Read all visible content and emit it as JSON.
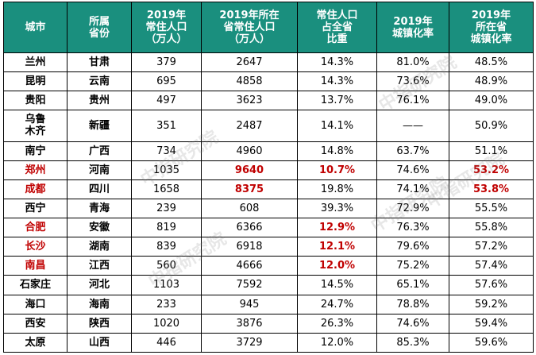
{
  "headers": [
    "城市",
    "所属\n省份",
    "2019年\n常住人口\n（万人）",
    "2019年所在\n省常住人口\n（万人）",
    "常住人口\n占全省\n比重",
    "2019年\n城镇化率",
    "2019年\n所在省\n城镇化率"
  ],
  "rows": [
    {
      "city": "兰州",
      "province": "甘肃",
      "pop": "379",
      "prov_pop": "2647",
      "share": "14.3%",
      "urban": "81.0%",
      "prov_urban": "48.5%"
    },
    {
      "city": "昆明",
      "province": "云南",
      "pop": "695",
      "prov_pop": "4858",
      "share": "14.3%",
      "urban": "73.6%",
      "prov_urban": "48.9%"
    },
    {
      "city": "贵阳",
      "province": "贵州",
      "pop": "497",
      "prov_pop": "3623",
      "share": "13.7%",
      "urban": "76.1%",
      "prov_urban": "49.0%"
    },
    {
      "city": "乌鲁\n木齐",
      "province": "新疆",
      "pop": "351",
      "prov_pop": "2487",
      "share": "14.1%",
      "urban": "——",
      "prov_urban": "50.9%"
    },
    {
      "city": "南宁",
      "province": "广西",
      "pop": "734",
      "prov_pop": "4960",
      "share": "14.8%",
      "urban": "63.7%",
      "prov_urban": "51.1%"
    },
    {
      "city": "郑州",
      "province": "河南",
      "pop": "1035",
      "prov_pop": "9640",
      "share": "10.7%",
      "urban": "74.6%",
      "prov_urban": "53.2%"
    },
    {
      "city": "成都",
      "province": "四川",
      "pop": "1658",
      "prov_pop": "8375",
      "share": "19.8%",
      "urban": "74.1%",
      "prov_urban": "53.8%"
    },
    {
      "city": "西宁",
      "province": "青海",
      "pop": "239",
      "prov_pop": "608",
      "share": "39.3%",
      "urban": "72.9%",
      "prov_urban": "55.5%"
    },
    {
      "city": "合肥",
      "province": "安徽",
      "pop": "819",
      "prov_pop": "6366",
      "share": "12.9%",
      "urban": "76.3%",
      "prov_urban": "55.8%"
    },
    {
      "city": "长沙",
      "province": "湖南",
      "pop": "839",
      "prov_pop": "6918",
      "share": "12.1%",
      "urban": "79.6%",
      "prov_urban": "57.2%"
    },
    {
      "city": "南昌",
      "province": "江西",
      "pop": "560",
      "prov_pop": "4666",
      "share": "12.0%",
      "urban": "75.2%",
      "prov_urban": "57.4%"
    },
    {
      "city": "石家庄",
      "province": "河北",
      "pop": "1103",
      "prov_pop": "7592",
      "share": "14.5%",
      "urban": "65.1%",
      "prov_urban": "57.6%"
    },
    {
      "city": "海口",
      "province": "海南",
      "pop": "233",
      "prov_pop": "945",
      "share": "24.7%",
      "urban": "78.8%",
      "prov_urban": "59.2%"
    },
    {
      "city": "西安",
      "province": "陕西",
      "pop": "1020",
      "prov_pop": "3876",
      "share": "26.3%",
      "urban": "74.6%",
      "prov_urban": "59.4%"
    },
    {
      "city": "太原",
      "province": "山西",
      "pop": "446",
      "prov_pop": "3729",
      "share": "12.0%",
      "urban": "85.3%",
      "prov_urban": "59.6%"
    }
  ],
  "highlight_color": "#c00000",
  "header_color": "#1a8f7e",
  "watermark": "中指研究院"
}
